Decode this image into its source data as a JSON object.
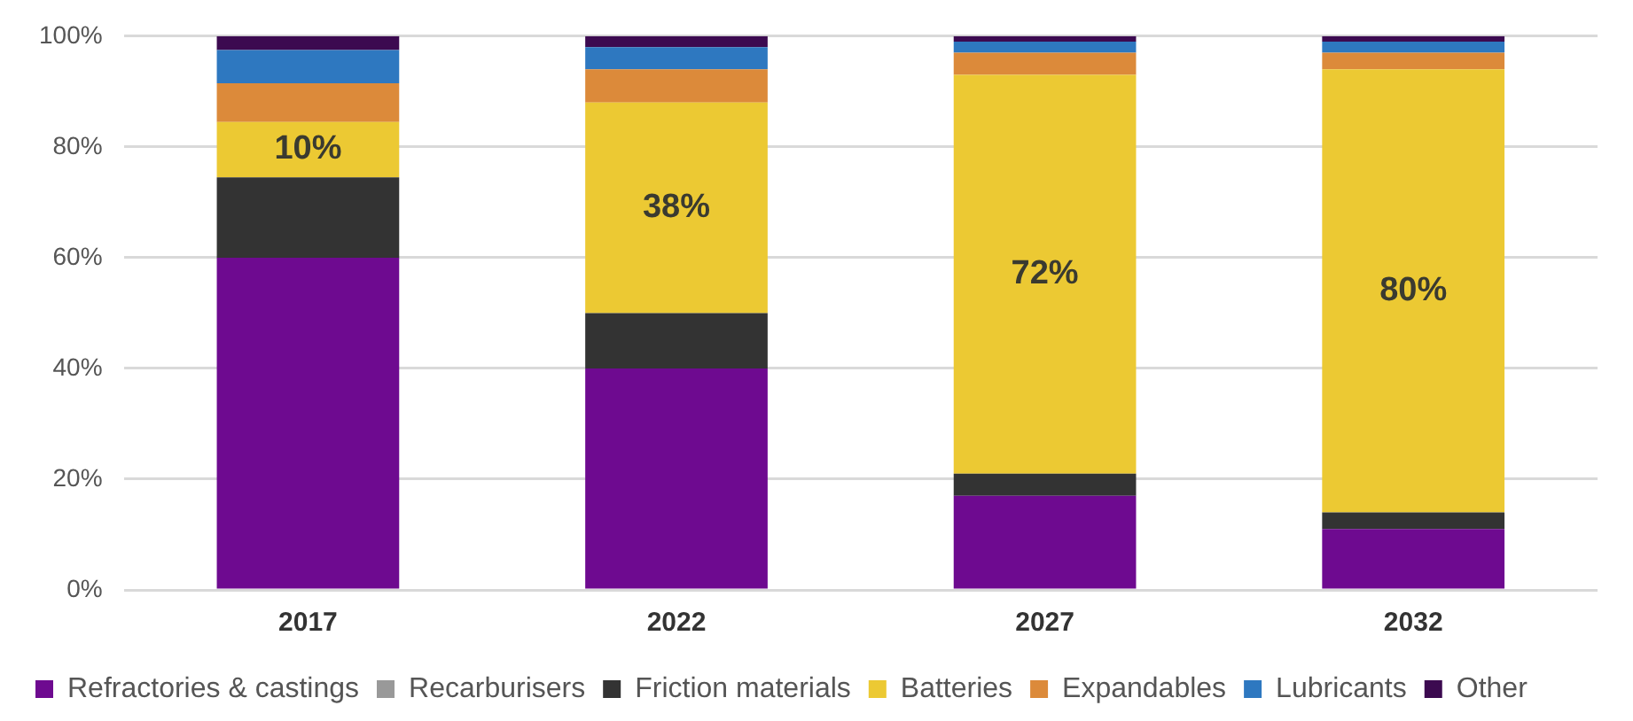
{
  "chart_data": {
    "type": "bar",
    "stacked": true,
    "categories": [
      "2017",
      "2022",
      "2027",
      "2032"
    ],
    "series": [
      {
        "name": "Refractories & castings",
        "color": "#6e0a90",
        "values": [
          60,
          40,
          17,
          11
        ]
      },
      {
        "name": "Recarburisers",
        "color": "#999999",
        "values": [
          0,
          0,
          0,
          0
        ]
      },
      {
        "name": "Friction materials",
        "color": "#333333",
        "values": [
          14.5,
          10,
          4,
          3
        ]
      },
      {
        "name": "Batteries",
        "color": "#ecc933",
        "values": [
          10,
          38,
          72,
          80
        ],
        "value_labels": [
          "10%",
          "38%",
          "72%",
          "80%"
        ]
      },
      {
        "name": "Expandables",
        "color": "#dc8a3a",
        "values": [
          7,
          6,
          4,
          3
        ]
      },
      {
        "name": "Lubricants",
        "color": "#2e78c0",
        "values": [
          6,
          4,
          2,
          2
        ]
      },
      {
        "name": "Other",
        "color": "#3c0a50",
        "values": [
          2.5,
          2,
          1,
          1
        ]
      }
    ],
    "ylim": [
      0,
      100
    ],
    "yticks": [
      {
        "value": 0,
        "label": "0%"
      },
      {
        "value": 20,
        "label": "20%"
      },
      {
        "value": 40,
        "label": "40%"
      },
      {
        "value": 60,
        "label": "60%"
      },
      {
        "value": 80,
        "label": "80%"
      },
      {
        "value": 100,
        "label": "100%"
      }
    ],
    "grid": "y",
    "legend": "bottom"
  }
}
